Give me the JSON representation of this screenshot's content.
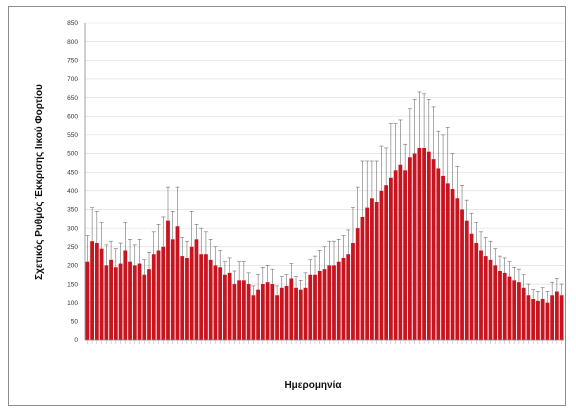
{
  "chart_data": {
    "type": "bar",
    "title": "",
    "xlabel": "Ημερομηνία",
    "ylabel": "Σχετικός Ρυθμός Έκκρισης Ιικού Φορτίου",
    "ylim": [
      0,
      850
    ],
    "yticks": [
      0,
      50,
      100,
      150,
      200,
      250,
      300,
      350,
      400,
      450,
      500,
      550,
      600,
      650,
      700,
      750,
      800,
      850
    ],
    "grid": true,
    "legend": "none",
    "bar_color": "#c8141e",
    "error_bar_color": "#555555",
    "series": [
      {
        "values": [
          210,
          265,
          260,
          245,
          200,
          215,
          195,
          205,
          240,
          210,
          200,
          205,
          175,
          190,
          230,
          240,
          250,
          320,
          270,
          305,
          225,
          220,
          250,
          270,
          230,
          230,
          215,
          200,
          195,
          175,
          180,
          150,
          160,
          160,
          150,
          120,
          135,
          150,
          155,
          150,
          120,
          140,
          145,
          165,
          140,
          135,
          140,
          175,
          175,
          185,
          190,
          200,
          200,
          210,
          220,
          230,
          260,
          300,
          330,
          355,
          380,
          370,
          400,
          415,
          435,
          455,
          470,
          455,
          490,
          500,
          515,
          515,
          505,
          485,
          460,
          440,
          420,
          405,
          380,
          350,
          320,
          285,
          260,
          240,
          225,
          215,
          200,
          185,
          180,
          170,
          160,
          155,
          140,
          120,
          110,
          105,
          110,
          100,
          120,
          130,
          120
        ],
        "errors": [
          70,
          90,
          85,
          70,
          55,
          50,
          50,
          55,
          75,
          60,
          55,
          65,
          40,
          45,
          60,
          70,
          80,
          90,
          75,
          105,
          50,
          45,
          95,
          40,
          70,
          60,
          55,
          50,
          45,
          35,
          40,
          35,
          50,
          50,
          30,
          25,
          40,
          45,
          45,
          40,
          25,
          30,
          30,
          40,
          30,
          25,
          40,
          40,
          50,
          55,
          60,
          65,
          65,
          60,
          60,
          65,
          95,
          110,
          150,
          125,
          100,
          110,
          120,
          100,
          145,
          125,
          120,
          70,
          130,
          145,
          150,
          145,
          140,
          140,
          100,
          110,
          150,
          95,
          85,
          65,
          55,
          55,
          55,
          50,
          50,
          50,
          45,
          40,
          40,
          40,
          35,
          35,
          35,
          30,
          25,
          25,
          30,
          30,
          35,
          35,
          30
        ]
      }
    ]
  }
}
